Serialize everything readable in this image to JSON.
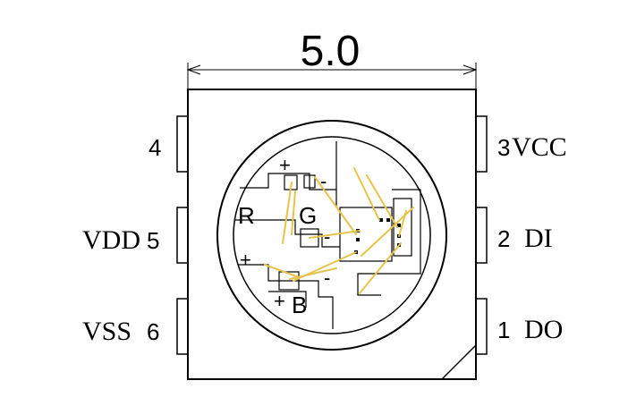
{
  "dimension": {
    "value": "5.0"
  },
  "pins": {
    "p4": {
      "number": "4"
    },
    "p5": {
      "name": "VDD",
      "number": "5"
    },
    "p6": {
      "name": "VSS",
      "number": "6"
    },
    "p3": {
      "number": "3",
      "name": "VCC"
    },
    "p2": {
      "number": "2",
      "name": "DI"
    },
    "p1": {
      "number": "1",
      "name": "DO"
    }
  },
  "die_labels": {
    "red": "R",
    "green": "G",
    "blue": "B",
    "plus": "+",
    "minus": "-"
  },
  "colors": {
    "outline": "#000000",
    "bond_wire": "#e6c34a",
    "background": "#ffffff"
  }
}
